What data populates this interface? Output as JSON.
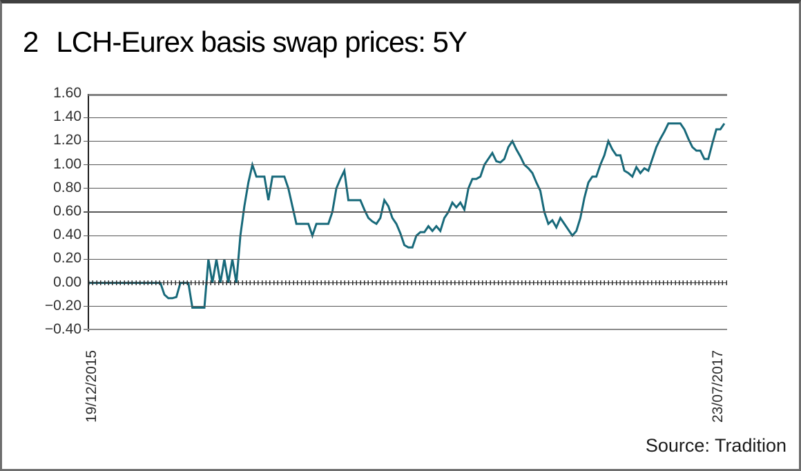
{
  "title": {
    "number": "2",
    "text": "LCH-Eurex basis swap prices: 5Y"
  },
  "source_note": "Source: Tradition",
  "chart_data": {
    "type": "line",
    "title": "LCH-Eurex basis swap prices: 5Y",
    "figure_number": "2",
    "legend": "none",
    "grid": "horizontal",
    "x_axis": {
      "start_label": "19/12/2015",
      "end_label": "23/07/2017",
      "tick_style": "dense small ticks along the zero baseline"
    },
    "y_axis": {
      "min": -0.4,
      "max": 1.6,
      "tick_step": 0.2,
      "tick_labels": [
        "1.60",
        "1.40",
        "1.20",
        "1.00",
        "0.80",
        "0.60",
        "0.40",
        "0.20",
        "0.00",
        "−0.20",
        "−0.40"
      ]
    },
    "series": [
      {
        "name": "LCH-Eurex basis swap 5Y",
        "color": "#17697A",
        "values": [
          0.0,
          0.0,
          0.0,
          0.0,
          0.0,
          0.0,
          0.0,
          0.0,
          0.0,
          0.0,
          0.0,
          0.0,
          0.0,
          0.0,
          0.0,
          0.0,
          0.0,
          0.0,
          0.0,
          -0.1,
          -0.13,
          -0.13,
          -0.12,
          0.0,
          0.0,
          0.0,
          -0.21,
          -0.21,
          -0.21,
          -0.21,
          0.2,
          0.0,
          0.2,
          0.0,
          0.2,
          0.0,
          0.2,
          0.0,
          0.4,
          0.65,
          0.85,
          1.0,
          0.9,
          0.9,
          0.9,
          0.7,
          0.9,
          0.9,
          0.9,
          0.9,
          0.8,
          0.65,
          0.5,
          0.5,
          0.5,
          0.5,
          0.4,
          0.5,
          0.5,
          0.5,
          0.5,
          0.6,
          0.8,
          0.88,
          0.95,
          0.7,
          0.7,
          0.7,
          0.7,
          0.62,
          0.55,
          0.52,
          0.5,
          0.55,
          0.7,
          0.65,
          0.55,
          0.5,
          0.42,
          0.32,
          0.3,
          0.3,
          0.4,
          0.43,
          0.43,
          0.48,
          0.44,
          0.48,
          0.44,
          0.55,
          0.6,
          0.68,
          0.64,
          0.68,
          0.62,
          0.8,
          0.88,
          0.88,
          0.9,
          1.0,
          1.05,
          1.1,
          1.03,
          1.02,
          1.05,
          1.15,
          1.2,
          1.13,
          1.07,
          1.0,
          0.97,
          0.93,
          0.85,
          0.78,
          0.6,
          0.5,
          0.53,
          0.47,
          0.55,
          0.5,
          0.45,
          0.4,
          0.44,
          0.55,
          0.72,
          0.85,
          0.9,
          0.9,
          1.0,
          1.08,
          1.2,
          1.13,
          1.08,
          1.08,
          0.95,
          0.93,
          0.9,
          0.98,
          0.93,
          0.97,
          0.95,
          1.05,
          1.15,
          1.22,
          1.28,
          1.35,
          1.35,
          1.35,
          1.35,
          1.3,
          1.22,
          1.15,
          1.12,
          1.12,
          1.05,
          1.05,
          1.18,
          1.3,
          1.3,
          1.35
        ]
      }
    ],
    "source": "Tradition"
  }
}
